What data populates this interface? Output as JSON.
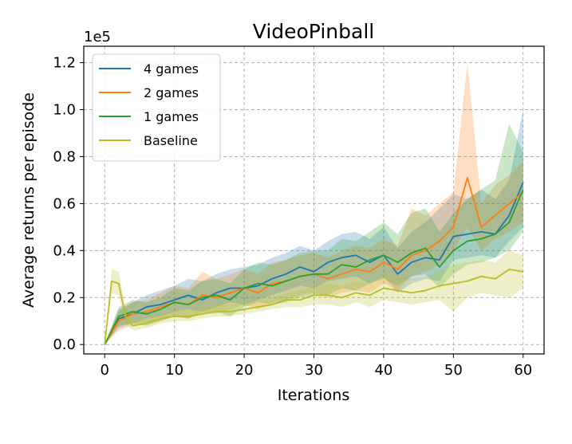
{
  "chart_data": {
    "type": "line",
    "title": "VideoPinball",
    "xlabel": "Iterations",
    "ylabel": "Average returns per episode",
    "y_multiplier_label": "1e5",
    "xlim": [
      -3,
      63
    ],
    "ylim": [
      -0.04,
      1.27
    ],
    "xticks": [
      0,
      10,
      20,
      30,
      40,
      50,
      60
    ],
    "yticks": [
      0.0,
      0.2,
      0.4,
      0.6,
      0.8,
      1.0,
      1.2
    ],
    "grid": true,
    "legend_position": "upper-left",
    "series": [
      {
        "name": "4 games",
        "color": "#1f77b4",
        "x": [
          0,
          2,
          4,
          6,
          8,
          10,
          12,
          14,
          16,
          18,
          20,
          22,
          24,
          26,
          28,
          30,
          32,
          34,
          36,
          38,
          40,
          42,
          44,
          46,
          48,
          50,
          52,
          54,
          56,
          58,
          60
        ],
        "y": [
          0.0,
          0.11,
          0.13,
          0.16,
          0.17,
          0.19,
          0.21,
          0.19,
          0.22,
          0.24,
          0.24,
          0.25,
          0.28,
          0.3,
          0.33,
          0.31,
          0.35,
          0.37,
          0.38,
          0.35,
          0.38,
          0.3,
          0.35,
          0.37,
          0.36,
          0.46,
          0.47,
          0.48,
          0.47,
          0.55,
          0.69
        ],
        "lower": [
          0.0,
          0.07,
          0.09,
          0.11,
          0.12,
          0.14,
          0.15,
          0.14,
          0.16,
          0.18,
          0.17,
          0.19,
          0.21,
          0.23,
          0.25,
          0.24,
          0.27,
          0.28,
          0.29,
          0.26,
          0.29,
          0.22,
          0.26,
          0.28,
          0.27,
          0.36,
          0.37,
          0.38,
          0.37,
          0.44,
          0.5
        ],
        "upper": [
          0.0,
          0.15,
          0.18,
          0.21,
          0.23,
          0.25,
          0.28,
          0.27,
          0.3,
          0.32,
          0.33,
          0.34,
          0.37,
          0.39,
          0.42,
          0.4,
          0.44,
          0.47,
          0.48,
          0.45,
          0.5,
          0.41,
          0.48,
          0.52,
          0.58,
          0.64,
          0.62,
          0.66,
          0.62,
          0.7,
          1.0
        ]
      },
      {
        "name": "2 games",
        "color": "#ff7f0e",
        "x": [
          0,
          2,
          4,
          6,
          8,
          10,
          12,
          14,
          16,
          18,
          20,
          22,
          24,
          26,
          28,
          30,
          32,
          34,
          36,
          38,
          40,
          42,
          44,
          46,
          48,
          50,
          52,
          54,
          56,
          58,
          60
        ],
        "y": [
          0.0,
          0.1,
          0.13,
          0.14,
          0.16,
          0.18,
          0.17,
          0.21,
          0.2,
          0.22,
          0.24,
          0.22,
          0.26,
          0.27,
          0.29,
          0.3,
          0.28,
          0.3,
          0.32,
          0.31,
          0.35,
          0.32,
          0.38,
          0.4,
          0.44,
          0.5,
          0.71,
          0.5,
          0.55,
          0.6,
          0.65
        ],
        "lower": [
          0.0,
          0.06,
          0.08,
          0.09,
          0.1,
          0.12,
          0.11,
          0.14,
          0.13,
          0.15,
          0.17,
          0.15,
          0.18,
          0.19,
          0.21,
          0.22,
          0.2,
          0.22,
          0.23,
          0.22,
          0.26,
          0.23,
          0.29,
          0.31,
          0.34,
          0.4,
          0.5,
          0.4,
          0.45,
          0.48,
          0.52
        ],
        "upper": [
          0.0,
          0.14,
          0.18,
          0.19,
          0.22,
          0.25,
          0.24,
          0.31,
          0.28,
          0.3,
          0.32,
          0.3,
          0.35,
          0.36,
          0.38,
          0.39,
          0.37,
          0.4,
          0.42,
          0.41,
          0.45,
          0.42,
          0.58,
          0.55,
          0.6,
          0.65,
          1.2,
          0.6,
          0.68,
          0.72,
          0.78
        ]
      },
      {
        "name": "1 games",
        "color": "#2ca02c",
        "x": [
          0,
          2,
          4,
          6,
          8,
          10,
          12,
          14,
          16,
          18,
          20,
          22,
          24,
          26,
          28,
          30,
          32,
          34,
          36,
          38,
          40,
          42,
          44,
          46,
          48,
          50,
          52,
          54,
          56,
          58,
          60
        ],
        "y": [
          0.0,
          0.12,
          0.14,
          0.13,
          0.15,
          0.18,
          0.17,
          0.2,
          0.21,
          0.19,
          0.24,
          0.26,
          0.25,
          0.27,
          0.29,
          0.3,
          0.3,
          0.34,
          0.33,
          0.36,
          0.38,
          0.35,
          0.39,
          0.41,
          0.33,
          0.4,
          0.44,
          0.45,
          0.47,
          0.52,
          0.66
        ],
        "lower": [
          0.0,
          0.08,
          0.09,
          0.08,
          0.1,
          0.12,
          0.11,
          0.13,
          0.14,
          0.12,
          0.16,
          0.18,
          0.17,
          0.18,
          0.2,
          0.21,
          0.21,
          0.24,
          0.23,
          0.26,
          0.28,
          0.25,
          0.29,
          0.3,
          0.24,
          0.3,
          0.34,
          0.35,
          0.37,
          0.4,
          0.48
        ],
        "upper": [
          0.0,
          0.16,
          0.19,
          0.18,
          0.2,
          0.24,
          0.23,
          0.27,
          0.28,
          0.26,
          0.32,
          0.35,
          0.34,
          0.36,
          0.39,
          0.4,
          0.4,
          0.45,
          0.44,
          0.48,
          0.52,
          0.47,
          0.56,
          0.58,
          0.48,
          0.56,
          0.62,
          0.66,
          0.7,
          0.94,
          0.82
        ]
      },
      {
        "name": "Baseline",
        "color": "#bcbd22",
        "x": [
          0,
          1,
          2,
          3,
          4,
          6,
          8,
          10,
          12,
          14,
          16,
          18,
          20,
          22,
          24,
          26,
          28,
          30,
          32,
          34,
          36,
          38,
          40,
          42,
          44,
          46,
          48,
          50,
          52,
          54,
          56,
          58,
          60
        ],
        "y": [
          0.0,
          0.27,
          0.26,
          0.12,
          0.08,
          0.09,
          0.11,
          0.12,
          0.12,
          0.13,
          0.14,
          0.14,
          0.15,
          0.16,
          0.17,
          0.19,
          0.19,
          0.21,
          0.21,
          0.2,
          0.22,
          0.21,
          0.24,
          0.23,
          0.22,
          0.23,
          0.25,
          0.26,
          0.27,
          0.29,
          0.28,
          0.32,
          0.31
        ],
        "lower": [
          0.0,
          0.22,
          0.21,
          0.09,
          0.06,
          0.07,
          0.09,
          0.1,
          0.1,
          0.11,
          0.12,
          0.12,
          0.13,
          0.14,
          0.15,
          0.16,
          0.16,
          0.17,
          0.17,
          0.16,
          0.18,
          0.16,
          0.19,
          0.18,
          0.17,
          0.18,
          0.19,
          0.14,
          0.2,
          0.22,
          0.21,
          0.2,
          0.24
        ],
        "upper": [
          0.0,
          0.32,
          0.31,
          0.15,
          0.1,
          0.11,
          0.13,
          0.14,
          0.15,
          0.16,
          0.17,
          0.17,
          0.18,
          0.19,
          0.2,
          0.22,
          0.23,
          0.25,
          0.26,
          0.25,
          0.27,
          0.26,
          0.3,
          0.29,
          0.28,
          0.29,
          0.31,
          0.34,
          0.35,
          0.36,
          0.35,
          0.4,
          0.38
        ]
      }
    ]
  }
}
